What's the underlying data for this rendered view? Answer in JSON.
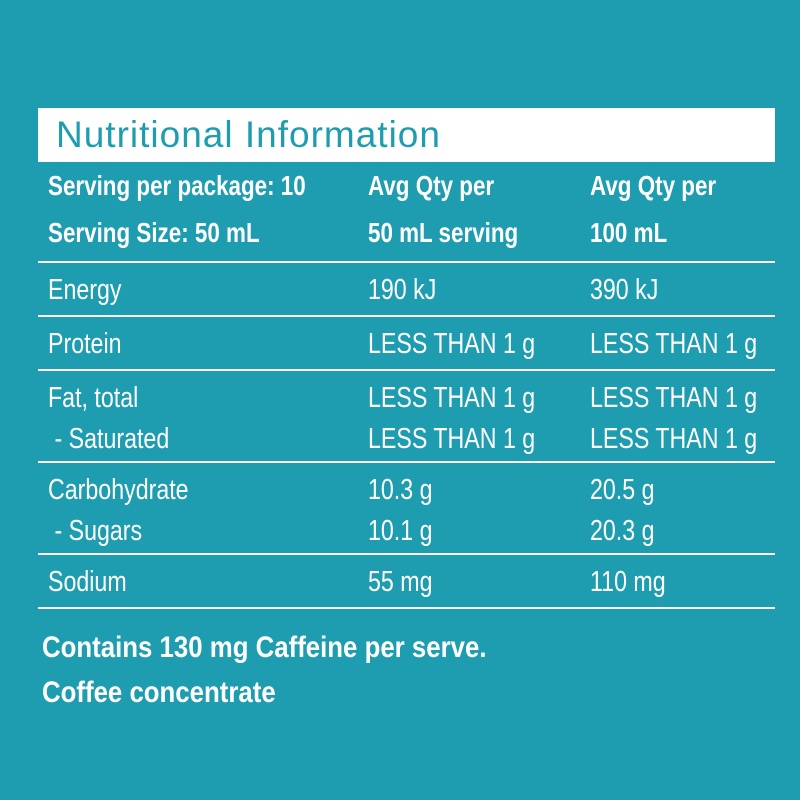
{
  "title": "Nutritional Information",
  "header": [
    [
      "Serving per package: 10",
      "Serving Size: 50 mL"
    ],
    [
      "Avg Qty per",
      "50 mL serving"
    ],
    [
      "Avg Qty per",
      "100 mL"
    ]
  ],
  "rows": [
    [
      [
        "Energy",
        "190 kJ",
        "390 kJ"
      ]
    ],
    [
      [
        "Protein",
        "LESS THAN 1 g",
        "LESS THAN 1 g"
      ]
    ],
    [
      [
        "Fat, total",
        "LESS THAN 1 g",
        "LESS THAN 1 g"
      ],
      [
        " - Saturated",
        "LESS THAN 1 g",
        "LESS THAN 1 g"
      ]
    ],
    [
      [
        "Carbohydrate",
        "10.3 g",
        "20.5 g"
      ],
      [
        " - Sugars",
        "10.1 g",
        "20.3 g"
      ]
    ],
    [
      [
        "Sodium",
        "55 mg",
        "110 mg"
      ]
    ]
  ],
  "footer": [
    "Contains 130 mg Caffeine per serve.",
    "Coffee concentrate"
  ]
}
